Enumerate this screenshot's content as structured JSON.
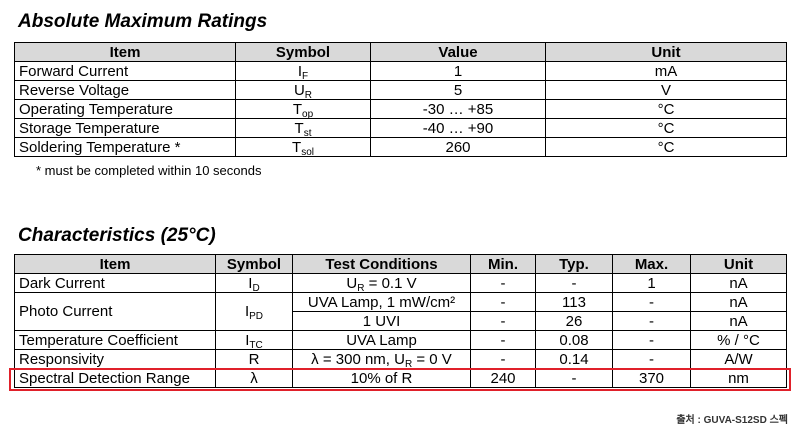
{
  "ratings": {
    "title": "Absolute Maximum Ratings",
    "header": [
      "Item",
      "Symbol",
      "Value",
      "Unit"
    ],
    "rows": [
      {
        "item": "Forward Current",
        "symbol": {
          "base": "I",
          "sub": "F"
        },
        "value": "1",
        "unit": "mA"
      },
      {
        "item": "Reverse Voltage",
        "symbol": {
          "base": "U",
          "sub": "R"
        },
        "value": "5",
        "unit": "V"
      },
      {
        "item": "Operating Temperature",
        "symbol": {
          "base": "T",
          "sub": "op"
        },
        "value": "-30 … +85",
        "unit": "°C"
      },
      {
        "item": "Storage Temperature",
        "symbol": {
          "base": "T",
          "sub": "st"
        },
        "value": "-40 … +90",
        "unit": "°C"
      },
      {
        "item": "Soldering Temperature *",
        "symbol": {
          "base": "T",
          "sub": "sol"
        },
        "value": "260",
        "unit": "°C"
      }
    ],
    "footnote": "* must be completed within 10 seconds"
  },
  "characteristics": {
    "title": "Characteristics (25°C)",
    "header": [
      "Item",
      "Symbol",
      "Test Conditions",
      "Min.",
      "Typ.",
      "Max.",
      "Unit"
    ],
    "rows": [
      {
        "item": "Dark Current",
        "symbol": {
          "base": "I",
          "sub": "D"
        },
        "measurements": [
          {
            "condition": {
              "text": "U",
              "sub": "R",
              "post": " = 0.1 V"
            },
            "min": "-",
            "typ": "-",
            "max": "1",
            "unit": "nA"
          }
        ]
      },
      {
        "item": "Photo Current",
        "symbol": {
          "base": "I",
          "sub": "PD"
        },
        "measurements": [
          {
            "condition": {
              "text": "UVA Lamp, 1 mW/cm²"
            },
            "min": "-",
            "typ": "113",
            "max": "-",
            "unit": "nA"
          },
          {
            "condition": {
              "text": "1 UVI"
            },
            "min": "-",
            "typ": "26",
            "max": "-",
            "unit": "nA"
          }
        ]
      },
      {
        "item": "Temperature Coefficient",
        "symbol": {
          "base": "I",
          "sub": "TC"
        },
        "measurements": [
          {
            "condition": {
              "text": "UVA Lamp"
            },
            "min": "-",
            "typ": "0.08",
            "max": "-",
            "unit": "% / °C"
          }
        ]
      },
      {
        "item": "Responsivity",
        "symbol": {
          "base": "R"
        },
        "measurements": [
          {
            "condition": {
              "text": "λ = 300 nm, U",
              "sub": "R",
              "post": " = 0 V"
            },
            "min": "-",
            "typ": "0.14",
            "max": "-",
            "unit": "A/W"
          }
        ]
      },
      {
        "item": "Spectral Detection Range",
        "symbol": {
          "base": "λ"
        },
        "measurements": [
          {
            "condition": {
              "text": "10% of R"
            },
            "min": "240",
            "typ": "-",
            "max": "370",
            "unit": "nm"
          }
        ]
      }
    ]
  },
  "source": "출처 : GUVA-S12SD 스펙"
}
